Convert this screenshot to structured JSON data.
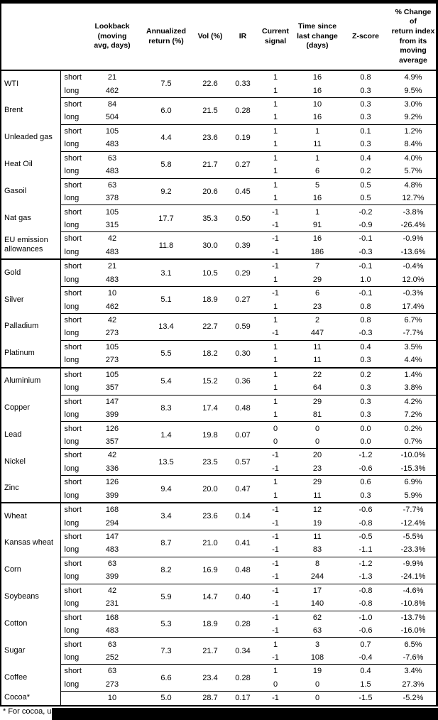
{
  "table": {
    "headers": {
      "lookback": "Lookback\n(moving\navg, days)",
      "annualized": "Annualized\nreturn (%)",
      "vol": "Vol (%)",
      "ir": "IR",
      "signal": "Current\nsignal",
      "time": "Time since\nlast change\n(days)",
      "z": "Z-score",
      "pct": "% Change of\nreturn index\nfrom its\nmoving\naverage"
    },
    "groups": [
      {
        "name": "WTI",
        "annualized": "7.5",
        "vol": "22.6",
        "ir": "0.33",
        "rows": [
          {
            "horizon": "short",
            "lookback": "21",
            "signal": "1",
            "time": "16",
            "z": "0.8",
            "pct": "4.9%"
          },
          {
            "horizon": "long",
            "lookback": "462",
            "signal": "1",
            "time": "16",
            "z": "0.3",
            "pct": "9.5%"
          }
        ]
      },
      {
        "name": "Brent",
        "annualized": "6.0",
        "vol": "21.5",
        "ir": "0.28",
        "rows": [
          {
            "horizon": "short",
            "lookback": "84",
            "signal": "1",
            "time": "10",
            "z": "0.3",
            "pct": "3.0%"
          },
          {
            "horizon": "long",
            "lookback": "504",
            "signal": "1",
            "time": "16",
            "z": "0.3",
            "pct": "9.2%"
          }
        ]
      },
      {
        "name": "Unleaded gas",
        "annualized": "4.4",
        "vol": "23.6",
        "ir": "0.19",
        "rows": [
          {
            "horizon": "short",
            "lookback": "105",
            "signal": "1",
            "time": "1",
            "z": "0.1",
            "pct": "1.2%"
          },
          {
            "horizon": "long",
            "lookback": "483",
            "signal": "1",
            "time": "11",
            "z": "0.3",
            "pct": "8.4%"
          }
        ]
      },
      {
        "name": "Heat Oil",
        "annualized": "5.8",
        "vol": "21.7",
        "ir": "0.27",
        "rows": [
          {
            "horizon": "short",
            "lookback": "63",
            "signal": "1",
            "time": "1",
            "z": "0.4",
            "pct": "4.0%"
          },
          {
            "horizon": "long",
            "lookback": "483",
            "signal": "1",
            "time": "6",
            "z": "0.2",
            "pct": "5.7%"
          }
        ]
      },
      {
        "name": "Gasoil",
        "annualized": "9.2",
        "vol": "20.6",
        "ir": "0.45",
        "rows": [
          {
            "horizon": "short",
            "lookback": "63",
            "signal": "1",
            "time": "5",
            "z": "0.5",
            "pct": "4.8%"
          },
          {
            "horizon": "long",
            "lookback": "378",
            "signal": "1",
            "time": "16",
            "z": "0.5",
            "pct": "12.7%"
          }
        ]
      },
      {
        "name": "Nat gas",
        "annualized": "17.7",
        "vol": "35.3",
        "ir": "0.50",
        "rows": [
          {
            "horizon": "short",
            "lookback": "105",
            "signal": "-1",
            "time": "1",
            "z": "-0.2",
            "pct": "-3.8%"
          },
          {
            "horizon": "long",
            "lookback": "315",
            "signal": "-1",
            "time": "91",
            "z": "-0.9",
            "pct": "-26.4%"
          }
        ]
      },
      {
        "name": "EU emission allowances",
        "annualized": "11.8",
        "vol": "30.0",
        "ir": "0.39",
        "thick_bottom": true,
        "rows": [
          {
            "horizon": "short",
            "lookback": "42",
            "signal": "-1",
            "time": "16",
            "z": "-0.1",
            "pct": "-0.9%"
          },
          {
            "horizon": "long",
            "lookback": "483",
            "signal": "-1",
            "time": "186",
            "z": "-0.3",
            "pct": "-13.6%"
          }
        ]
      },
      {
        "name": "Gold",
        "annualized": "3.1",
        "vol": "10.5",
        "ir": "0.29",
        "rows": [
          {
            "horizon": "short",
            "lookback": "21",
            "signal": "-1",
            "time": "7",
            "z": "-0.1",
            "pct": "-0.4%"
          },
          {
            "horizon": "long",
            "lookback": "483",
            "signal": "1",
            "time": "29",
            "z": "1.0",
            "pct": "12.0%"
          }
        ]
      },
      {
        "name": "Silver",
        "annualized": "5.1",
        "vol": "18.9",
        "ir": "0.27",
        "rows": [
          {
            "horizon": "short",
            "lookback": "10",
            "signal": "-1",
            "time": "6",
            "z": "-0.1",
            "pct": "-0.3%"
          },
          {
            "horizon": "long",
            "lookback": "462",
            "signal": "1",
            "time": "23",
            "z": "0.8",
            "pct": "17.4%"
          }
        ]
      },
      {
        "name": "Palladium",
        "annualized": "13.4",
        "vol": "22.7",
        "ir": "0.59",
        "rows": [
          {
            "horizon": "short",
            "lookback": "42",
            "signal": "1",
            "time": "2",
            "z": "0.8",
            "pct": "6.7%"
          },
          {
            "horizon": "long",
            "lookback": "273",
            "signal": "-1",
            "time": "447",
            "z": "-0.3",
            "pct": "-7.7%"
          }
        ]
      },
      {
        "name": "Platinum",
        "annualized": "5.5",
        "vol": "18.2",
        "ir": "0.30",
        "thick_bottom": true,
        "rows": [
          {
            "horizon": "short",
            "lookback": "105",
            "signal": "1",
            "time": "11",
            "z": "0.4",
            "pct": "3.5%"
          },
          {
            "horizon": "long",
            "lookback": "273",
            "signal": "1",
            "time": "11",
            "z": "0.3",
            "pct": "4.4%"
          }
        ]
      },
      {
        "name": "Aluminium",
        "annualized": "5.4",
        "vol": "15.2",
        "ir": "0.36",
        "rows": [
          {
            "horizon": "short",
            "lookback": "105",
            "signal": "1",
            "time": "22",
            "z": "0.2",
            "pct": "1.4%"
          },
          {
            "horizon": "long",
            "lookback": "357",
            "signal": "1",
            "time": "64",
            "z": "0.3",
            "pct": "3.8%"
          }
        ]
      },
      {
        "name": "Copper",
        "annualized": "8.3",
        "vol": "17.4",
        "ir": "0.48",
        "rows": [
          {
            "horizon": "short",
            "lookback": "147",
            "signal": "1",
            "time": "29",
            "z": "0.3",
            "pct": "4.2%"
          },
          {
            "horizon": "long",
            "lookback": "399",
            "signal": "1",
            "time": "81",
            "z": "0.3",
            "pct": "7.2%"
          }
        ]
      },
      {
        "name": "Lead",
        "annualized": "1.4",
        "vol": "19.8",
        "ir": "0.07",
        "rows": [
          {
            "horizon": "short",
            "lookback": "126",
            "signal": "0",
            "time": "0",
            "z": "0.0",
            "pct": "0.2%"
          },
          {
            "horizon": "long",
            "lookback": "357",
            "signal": "0",
            "time": "0",
            "z": "0.0",
            "pct": "0.7%"
          }
        ]
      },
      {
        "name": "Nickel",
        "annualized": "13.5",
        "vol": "23.5",
        "ir": "0.57",
        "rows": [
          {
            "horizon": "short",
            "lookback": "42",
            "signal": "-1",
            "time": "20",
            "z": "-1.2",
            "pct": "-10.0%"
          },
          {
            "horizon": "long",
            "lookback": "336",
            "signal": "-1",
            "time": "23",
            "z": "-0.6",
            "pct": "-15.3%"
          }
        ]
      },
      {
        "name": "Zinc",
        "annualized": "9.4",
        "vol": "20.0",
        "ir": "0.47",
        "thick_bottom": true,
        "rows": [
          {
            "horizon": "short",
            "lookback": "126",
            "signal": "1",
            "time": "29",
            "z": "0.6",
            "pct": "6.9%"
          },
          {
            "horizon": "long",
            "lookback": "399",
            "signal": "1",
            "time": "11",
            "z": "0.3",
            "pct": "5.9%"
          }
        ]
      },
      {
        "name": "Wheat",
        "annualized": "3.4",
        "vol": "23.6",
        "ir": "0.14",
        "rows": [
          {
            "horizon": "short",
            "lookback": "168",
            "signal": "-1",
            "time": "12",
            "z": "-0.6",
            "pct": "-7.7%"
          },
          {
            "horizon": "long",
            "lookback": "294",
            "signal": "-1",
            "time": "19",
            "z": "-0.8",
            "pct": "-12.4%"
          }
        ]
      },
      {
        "name": "Kansas wheat",
        "annualized": "8.7",
        "vol": "21.0",
        "ir": "0.41",
        "rows": [
          {
            "horizon": "short",
            "lookback": "147",
            "signal": "-1",
            "time": "11",
            "z": "-0.5",
            "pct": "-5.5%"
          },
          {
            "horizon": "long",
            "lookback": "483",
            "signal": "-1",
            "time": "83",
            "z": "-1.1",
            "pct": "-23.3%"
          }
        ]
      },
      {
        "name": "Corn",
        "annualized": "8.2",
        "vol": "16.9",
        "ir": "0.48",
        "rows": [
          {
            "horizon": "short",
            "lookback": "63",
            "signal": "-1",
            "time": "8",
            "z": "-1.2",
            "pct": "-9.9%"
          },
          {
            "horizon": "long",
            "lookback": "399",
            "signal": "-1",
            "time": "244",
            "z": "-1.3",
            "pct": "-24.1%"
          }
        ]
      },
      {
        "name": "Soybeans",
        "annualized": "5.9",
        "vol": "14.7",
        "ir": "0.40",
        "rows": [
          {
            "horizon": "short",
            "lookback": "42",
            "signal": "-1",
            "time": "17",
            "z": "-0.8",
            "pct": "-4.6%"
          },
          {
            "horizon": "long",
            "lookback": "231",
            "signal": "-1",
            "time": "140",
            "z": "-0.8",
            "pct": "-10.8%"
          }
        ]
      },
      {
        "name": "Cotton",
        "annualized": "5.3",
        "vol": "18.9",
        "ir": "0.28",
        "rows": [
          {
            "horizon": "short",
            "lookback": "168",
            "signal": "-1",
            "time": "62",
            "z": "-1.0",
            "pct": "-13.7%"
          },
          {
            "horizon": "long",
            "lookback": "483",
            "signal": "-1",
            "time": "63",
            "z": "-0.6",
            "pct": "-16.0%"
          }
        ]
      },
      {
        "name": "Sugar",
        "annualized": "7.3",
        "vol": "21.7",
        "ir": "0.34",
        "rows": [
          {
            "horizon": "short",
            "lookback": "63",
            "signal": "1",
            "time": "3",
            "z": "0.7",
            "pct": "6.5%"
          },
          {
            "horizon": "long",
            "lookback": "252",
            "signal": "-1",
            "time": "108",
            "z": "-0.4",
            "pct": "-7.6%"
          }
        ]
      },
      {
        "name": "Coffee",
        "annualized": "6.6",
        "vol": "23.4",
        "ir": "0.28",
        "rows": [
          {
            "horizon": "short",
            "lookback": "63",
            "signal": "1",
            "time": "19",
            "z": "0.4",
            "pct": "3.4%"
          },
          {
            "horizon": "long",
            "lookback": "273",
            "signal": "0",
            "time": "0",
            "z": "1.5",
            "pct": "27.3%"
          }
        ]
      },
      {
        "name": "Cocoa*",
        "annualized": "5.0",
        "vol": "28.7",
        "ir": "0.17",
        "thick_bottom": true,
        "rows": [
          {
            "horizon": "",
            "lookback": "10",
            "signal": "-1",
            "time": "0",
            "z": "-1.5",
            "pct": "-5.2%"
          }
        ]
      }
    ]
  },
  "footnote": {
    "text": "* For cocoa, uses c",
    "redacted": true
  }
}
